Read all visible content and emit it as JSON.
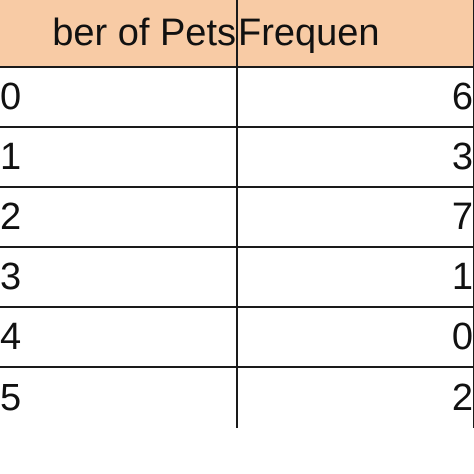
{
  "table": {
    "headers": {
      "pets": "ber of Pets",
      "frequency": "Frequen"
    },
    "rows": [
      {
        "pets": "0",
        "frequency": "6"
      },
      {
        "pets": "1",
        "frequency": "3"
      },
      {
        "pets": "2",
        "frequency": "7"
      },
      {
        "pets": "3",
        "frequency": "1"
      },
      {
        "pets": "4",
        "frequency": "0"
      },
      {
        "pets": "5",
        "frequency": "2"
      }
    ]
  },
  "colors": {
    "header_background": "#f8cba5",
    "border": "#1a1a1a",
    "text": "#111111"
  }
}
